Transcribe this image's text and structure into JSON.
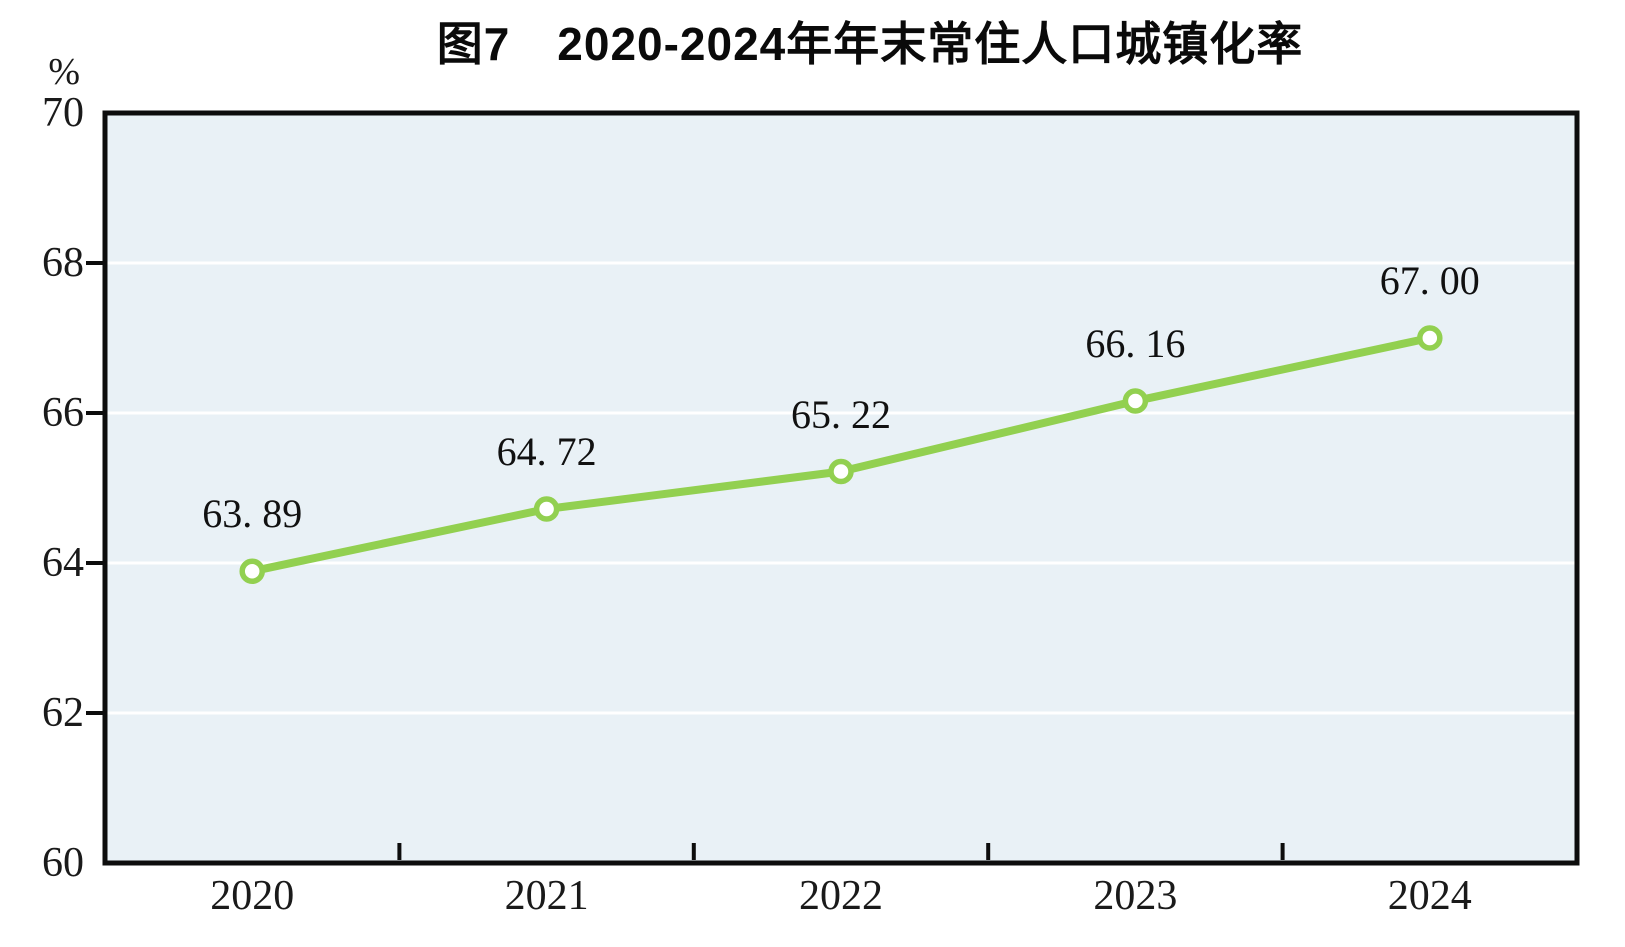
{
  "figure": {
    "title": "图7　2020-2024年年末常住人口城镇化率",
    "unit_label": "%"
  },
  "chart_data": {
    "type": "line",
    "title": "图7　2020-2024年年末常住人口城镇化率",
    "ylabel": "%",
    "xlabel": "",
    "categories": [
      "2020",
      "2021",
      "2022",
      "2023",
      "2024"
    ],
    "values": [
      63.89,
      64.72,
      65.22,
      66.16,
      67.0
    ],
    "point_labels": [
      "63. 89",
      "64. 72",
      "65. 22",
      "66. 16",
      "67. 00"
    ],
    "ylim": [
      60,
      70
    ],
    "y_ticks": [
      60,
      62,
      64,
      66,
      68,
      70
    ],
    "grid": "horizontal-white-gridlines",
    "legend": "none",
    "colors": {
      "line": "#92d050",
      "marker_fill": "#ffffff",
      "marker_ring": "#92d050",
      "plot_background": "#e9f1f6",
      "gridline": "#ffffff",
      "axis_border": "#0d0d0d",
      "text": "#1a1a1a",
      "page_edge": "#000000",
      "bottom_bar": "#0b0d1a"
    }
  }
}
